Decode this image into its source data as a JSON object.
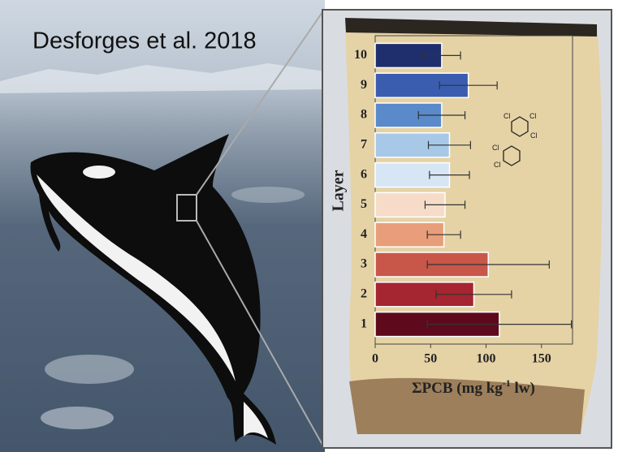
{
  "chart_data": {
    "type": "bar",
    "orientation": "horizontal",
    "title": "Desforges et al. 2018",
    "y_label": "Layer",
    "x_label": [
      "ΣPCB (mg kg",
      "-1",
      " lw)"
    ],
    "structure_labels": [
      "Cl",
      "Cl",
      "Cl",
      "Cl",
      "Cl"
    ],
    "categories": [
      "1",
      "2",
      "3",
      "4",
      "5",
      "6",
      "7",
      "8",
      "9",
      "10"
    ],
    "values": [
      112,
      89,
      102,
      62,
      63,
      67,
      67,
      60,
      84,
      60
    ],
    "errors": [
      65,
      34,
      55,
      15,
      18,
      18,
      19,
      21,
      26,
      17
    ],
    "colors": [
      "#5e0a1c",
      "#a52530",
      "#c8574a",
      "#e89e7a",
      "#f6dcc8",
      "#d6e6f4",
      "#a8c8e8",
      "#5b8acb",
      "#3a5db0",
      "#1f2f6e"
    ],
    "xlim": [
      0,
      178
    ],
    "xticks": [
      0,
      50,
      100,
      150
    ]
  }
}
